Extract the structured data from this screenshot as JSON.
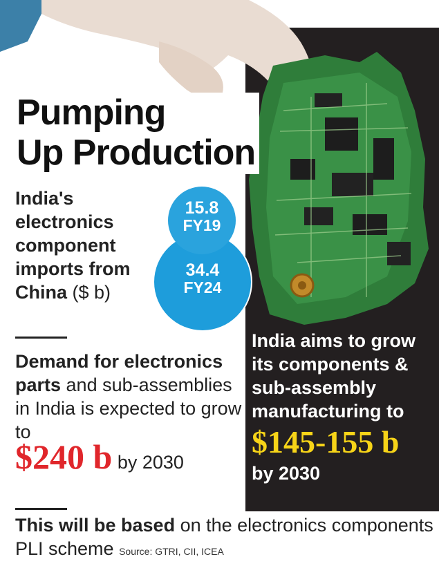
{
  "title_line1": "Pumping",
  "title_line2": "Up Production",
  "imports": {
    "label": "India's electronics component imports from China",
    "unit": "($ b)"
  },
  "chart_data": {
    "type": "bubble",
    "title": "",
    "series": [
      {
        "label": "FY19",
        "value": 15.8
      },
      {
        "label": "FY24",
        "value": 34.4
      }
    ],
    "unit": "($ b)"
  },
  "demand": {
    "bold_part": "Demand for electronics parts",
    "text": " and sub-assemblies in India is expected to grow to",
    "big_value": "$240 b",
    "year": " by 2030"
  },
  "aims": {
    "text": "India aims to grow its components & sub-assembly manufacturing to",
    "big_value": "$145-155 b",
    "year": "by 2030"
  },
  "bottom": {
    "bold_part": "This will be based",
    "text": " on the electronics components PLI scheme",
    "source": "Source: GTRI, CII, ICEA"
  },
  "colors": {
    "bubble_fy19": "#2aa3dd",
    "bubble_fy24": "#1e9ddb",
    "red": "#e0262b",
    "yellow": "#f7d418",
    "panel": "#231f20"
  }
}
